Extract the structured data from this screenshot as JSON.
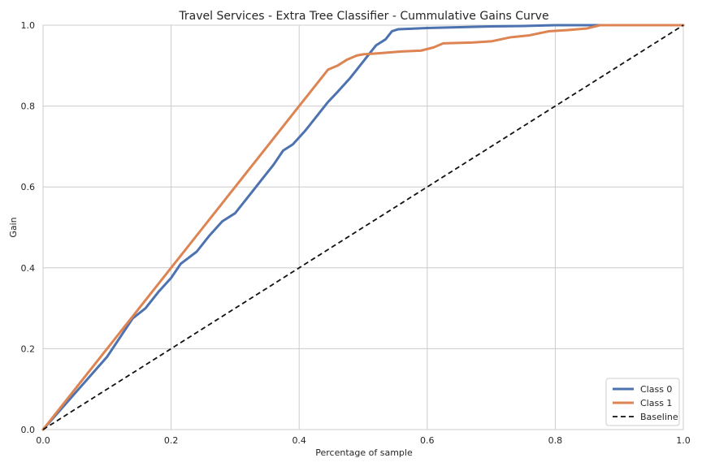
{
  "chart_data": {
    "type": "line",
    "title": "Travel Services - Extra Tree Classifier - Cummulative Gains Curve",
    "xlabel": "Percentage of sample",
    "ylabel": "Gain",
    "xlim": [
      0.0,
      1.0
    ],
    "ylim": [
      0.0,
      1.0
    ],
    "xticks": [
      "0.0",
      "0.2",
      "0.4",
      "0.6",
      "0.8",
      "1.0"
    ],
    "yticks": [
      "0.0",
      "0.2",
      "0.4",
      "0.6",
      "0.8",
      "1.0"
    ],
    "grid": true,
    "legend_position": "lower-right",
    "series": [
      {
        "name": "Class 0",
        "color": "#4c72b0",
        "dash": "none",
        "points": [
          [
            0.0,
            0.0
          ],
          [
            0.05,
            0.09
          ],
          [
            0.1,
            0.18
          ],
          [
            0.14,
            0.275
          ],
          [
            0.16,
            0.3
          ],
          [
            0.18,
            0.34
          ],
          [
            0.2,
            0.375
          ],
          [
            0.215,
            0.41
          ],
          [
            0.24,
            0.44
          ],
          [
            0.26,
            0.48
          ],
          [
            0.28,
            0.515
          ],
          [
            0.3,
            0.535
          ],
          [
            0.32,
            0.575
          ],
          [
            0.34,
            0.615
          ],
          [
            0.36,
            0.655
          ],
          [
            0.375,
            0.69
          ],
          [
            0.39,
            0.705
          ],
          [
            0.41,
            0.74
          ],
          [
            0.43,
            0.78
          ],
          [
            0.445,
            0.81
          ],
          [
            0.46,
            0.835
          ],
          [
            0.48,
            0.87
          ],
          [
            0.5,
            0.91
          ],
          [
            0.51,
            0.93
          ],
          [
            0.52,
            0.95
          ],
          [
            0.535,
            0.965
          ],
          [
            0.545,
            0.985
          ],
          [
            0.555,
            0.99
          ],
          [
            0.6,
            0.993
          ],
          [
            0.65,
            0.995
          ],
          [
            0.7,
            0.997
          ],
          [
            0.75,
            0.998
          ],
          [
            0.8,
            1.0
          ],
          [
            0.9,
            1.0
          ],
          [
            1.0,
            1.0
          ]
        ]
      },
      {
        "name": "Class 1",
        "color": "#dd8452",
        "dash": "none",
        "points": [
          [
            0.0,
            0.0
          ],
          [
            0.05,
            0.1
          ],
          [
            0.1,
            0.2
          ],
          [
            0.15,
            0.3
          ],
          [
            0.2,
            0.4
          ],
          [
            0.25,
            0.5
          ],
          [
            0.3,
            0.6
          ],
          [
            0.35,
            0.7
          ],
          [
            0.4,
            0.8
          ],
          [
            0.445,
            0.89
          ],
          [
            0.46,
            0.9
          ],
          [
            0.475,
            0.915
          ],
          [
            0.49,
            0.925
          ],
          [
            0.5,
            0.928
          ],
          [
            0.52,
            0.93
          ],
          [
            0.56,
            0.935
          ],
          [
            0.59,
            0.937
          ],
          [
            0.61,
            0.945
          ],
          [
            0.625,
            0.955
          ],
          [
            0.67,
            0.957
          ],
          [
            0.7,
            0.96
          ],
          [
            0.73,
            0.97
          ],
          [
            0.76,
            0.975
          ],
          [
            0.79,
            0.985
          ],
          [
            0.82,
            0.988
          ],
          [
            0.85,
            0.992
          ],
          [
            0.87,
            1.0
          ],
          [
            1.0,
            1.0
          ]
        ]
      },
      {
        "name": "Baseline",
        "color": "#111111",
        "dash": "6,4",
        "points": [
          [
            0.0,
            0.0
          ],
          [
            1.0,
            1.0
          ]
        ]
      }
    ]
  }
}
